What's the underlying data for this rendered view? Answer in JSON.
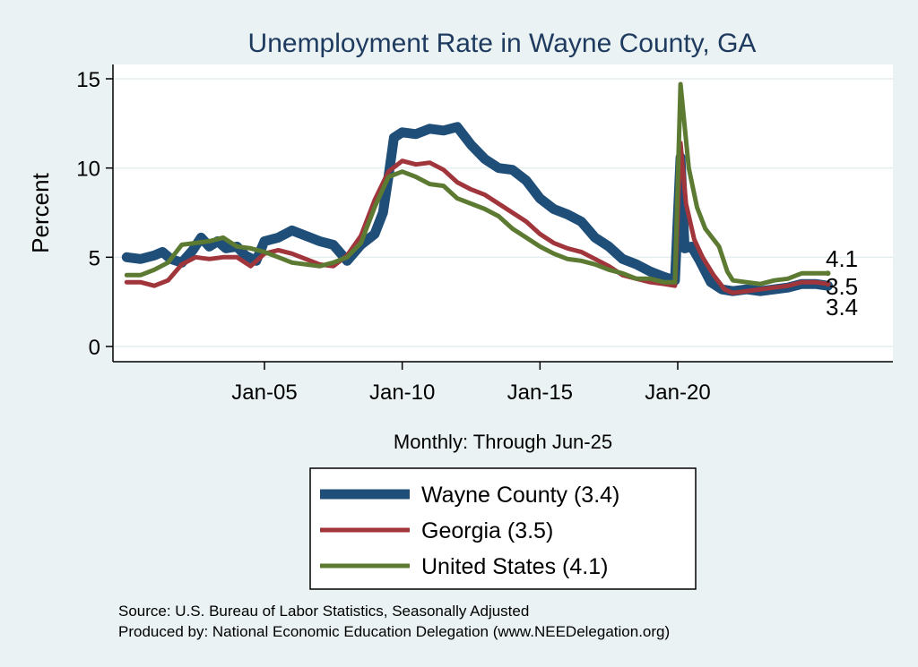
{
  "chart_data": {
    "type": "line",
    "title": "Unemployment Rate in Wayne  County, GA",
    "ylabel": "Percent",
    "xlabel": "",
    "x_note": "Monthly: Through Jun-25",
    "ylim": [
      0,
      15
    ],
    "yticks": [
      0,
      5,
      10,
      15
    ],
    "xlim": [
      2000.0,
      2027.5
    ],
    "xticks": [
      {
        "label": "Jan-05",
        "value": 2005
      },
      {
        "label": "Jan-10",
        "value": 2010
      },
      {
        "label": "Jan-15",
        "value": 2015
      },
      {
        "label": "Jan-20",
        "value": 2020
      }
    ],
    "grid": true,
    "series": [
      {
        "name": "Wayne  County",
        "legend_label": "Wayne  County (3.4)",
        "end_label": "3.4",
        "color": "#1f4e79",
        "points": [
          [
            2000.0,
            5.0
          ],
          [
            2000.5,
            4.9
          ],
          [
            2001.0,
            5.1
          ],
          [
            2001.3,
            5.3
          ],
          [
            2001.6,
            4.9
          ],
          [
            2002.0,
            4.7
          ],
          [
            2002.4,
            5.4
          ],
          [
            2002.7,
            6.1
          ],
          [
            2003.0,
            5.6
          ],
          [
            2003.3,
            5.9
          ],
          [
            2003.6,
            5.5
          ],
          [
            2004.0,
            5.6
          ],
          [
            2004.3,
            5.1
          ],
          [
            2004.7,
            4.8
          ],
          [
            2005.0,
            5.9
          ],
          [
            2005.5,
            6.1
          ],
          [
            2006.0,
            6.5
          ],
          [
            2006.5,
            6.2
          ],
          [
            2007.0,
            5.9
          ],
          [
            2007.5,
            5.7
          ],
          [
            2008.0,
            4.8
          ],
          [
            2008.5,
            5.7
          ],
          [
            2009.0,
            6.3
          ],
          [
            2009.3,
            7.5
          ],
          [
            2009.5,
            9.5
          ],
          [
            2009.7,
            11.7
          ],
          [
            2010.0,
            12.0
          ],
          [
            2010.5,
            11.9
          ],
          [
            2011.0,
            12.2
          ],
          [
            2011.5,
            12.1
          ],
          [
            2012.0,
            12.3
          ],
          [
            2012.5,
            11.3
          ],
          [
            2013.0,
            10.5
          ],
          [
            2013.5,
            10.0
          ],
          [
            2014.0,
            9.9
          ],
          [
            2014.5,
            9.3
          ],
          [
            2015.0,
            8.3
          ],
          [
            2015.5,
            7.7
          ],
          [
            2016.0,
            7.4
          ],
          [
            2016.5,
            7.0
          ],
          [
            2017.0,
            6.1
          ],
          [
            2017.5,
            5.6
          ],
          [
            2018.0,
            4.9
          ],
          [
            2018.5,
            4.6
          ],
          [
            2019.0,
            4.2
          ],
          [
            2019.5,
            3.9
          ],
          [
            2019.9,
            3.7
          ],
          [
            2020.1,
            10.6
          ],
          [
            2020.25,
            5.5
          ],
          [
            2020.5,
            5.6
          ],
          [
            2020.8,
            4.8
          ],
          [
            2021.2,
            3.6
          ],
          [
            2021.6,
            3.2
          ],
          [
            2022.0,
            3.1
          ],
          [
            2022.5,
            3.2
          ],
          [
            2023.0,
            3.1
          ],
          [
            2023.5,
            3.2
          ],
          [
            2024.0,
            3.3
          ],
          [
            2024.5,
            3.5
          ],
          [
            2025.0,
            3.5
          ],
          [
            2025.45,
            3.4
          ]
        ]
      },
      {
        "name": "Georgia",
        "legend_label": "Georgia (3.5)",
        "end_label": "3.5",
        "color": "#a0353b",
        "points": [
          [
            2000.0,
            3.6
          ],
          [
            2000.5,
            3.6
          ],
          [
            2001.0,
            3.4
          ],
          [
            2001.5,
            3.7
          ],
          [
            2002.0,
            4.6
          ],
          [
            2002.5,
            5.0
          ],
          [
            2003.0,
            4.9
          ],
          [
            2003.5,
            5.0
          ],
          [
            2004.0,
            5.0
          ],
          [
            2004.5,
            4.5
          ],
          [
            2005.0,
            5.2
          ],
          [
            2005.5,
            5.4
          ],
          [
            2006.0,
            5.2
          ],
          [
            2006.5,
            4.9
          ],
          [
            2007.0,
            4.6
          ],
          [
            2007.5,
            4.5
          ],
          [
            2008.0,
            5.1
          ],
          [
            2008.5,
            6.2
          ],
          [
            2009.0,
            8.2
          ],
          [
            2009.5,
            9.8
          ],
          [
            2010.0,
            10.4
          ],
          [
            2010.5,
            10.2
          ],
          [
            2011.0,
            10.3
          ],
          [
            2011.5,
            9.9
          ],
          [
            2012.0,
            9.2
          ],
          [
            2012.5,
            8.8
          ],
          [
            2013.0,
            8.5
          ],
          [
            2013.5,
            8.0
          ],
          [
            2014.0,
            7.5
          ],
          [
            2014.5,
            7.0
          ],
          [
            2015.0,
            6.3
          ],
          [
            2015.5,
            5.8
          ],
          [
            2016.0,
            5.5
          ],
          [
            2016.5,
            5.3
          ],
          [
            2017.0,
            4.9
          ],
          [
            2017.5,
            4.5
          ],
          [
            2018.0,
            4.0
          ],
          [
            2018.5,
            3.8
          ],
          [
            2019.0,
            3.6
          ],
          [
            2019.5,
            3.5
          ],
          [
            2019.9,
            3.4
          ],
          [
            2020.1,
            11.4
          ],
          [
            2020.3,
            8.0
          ],
          [
            2020.6,
            6.0
          ],
          [
            2020.9,
            5.0
          ],
          [
            2021.3,
            4.0
          ],
          [
            2021.7,
            3.2
          ],
          [
            2022.0,
            3.0
          ],
          [
            2022.5,
            3.1
          ],
          [
            2023.0,
            3.2
          ],
          [
            2023.5,
            3.3
          ],
          [
            2024.0,
            3.4
          ],
          [
            2024.5,
            3.6
          ],
          [
            2025.0,
            3.6
          ],
          [
            2025.45,
            3.5
          ]
        ]
      },
      {
        "name": "United States",
        "legend_label": "United States (4.1)",
        "end_label": "4.1",
        "color": "#5c7a31",
        "points": [
          [
            2000.0,
            4.0
          ],
          [
            2000.5,
            4.0
          ],
          [
            2001.0,
            4.3
          ],
          [
            2001.5,
            4.7
          ],
          [
            2002.0,
            5.7
          ],
          [
            2002.5,
            5.8
          ],
          [
            2003.0,
            5.9
          ],
          [
            2003.5,
            6.1
          ],
          [
            2004.0,
            5.6
          ],
          [
            2004.5,
            5.5
          ],
          [
            2005.0,
            5.3
          ],
          [
            2005.5,
            5.0
          ],
          [
            2006.0,
            4.7
          ],
          [
            2006.5,
            4.6
          ],
          [
            2007.0,
            4.5
          ],
          [
            2007.5,
            4.7
          ],
          [
            2008.0,
            5.0
          ],
          [
            2008.5,
            5.8
          ],
          [
            2009.0,
            7.8
          ],
          [
            2009.5,
            9.5
          ],
          [
            2010.0,
            9.8
          ],
          [
            2010.5,
            9.5
          ],
          [
            2011.0,
            9.1
          ],
          [
            2011.5,
            9.0
          ],
          [
            2012.0,
            8.3
          ],
          [
            2012.5,
            8.0
          ],
          [
            2013.0,
            7.7
          ],
          [
            2013.5,
            7.3
          ],
          [
            2014.0,
            6.6
          ],
          [
            2014.5,
            6.1
          ],
          [
            2015.0,
            5.6
          ],
          [
            2015.5,
            5.2
          ],
          [
            2016.0,
            4.9
          ],
          [
            2016.5,
            4.8
          ],
          [
            2017.0,
            4.6
          ],
          [
            2017.5,
            4.3
          ],
          [
            2018.0,
            4.1
          ],
          [
            2018.5,
            3.8
          ],
          [
            2019.0,
            3.8
          ],
          [
            2019.5,
            3.6
          ],
          [
            2019.9,
            3.6
          ],
          [
            2020.1,
            14.7
          ],
          [
            2020.4,
            10.0
          ],
          [
            2020.7,
            7.8
          ],
          [
            2021.0,
            6.6
          ],
          [
            2021.5,
            5.6
          ],
          [
            2021.8,
            4.2
          ],
          [
            2022.0,
            3.7
          ],
          [
            2022.5,
            3.6
          ],
          [
            2023.0,
            3.5
          ],
          [
            2023.5,
            3.7
          ],
          [
            2024.0,
            3.8
          ],
          [
            2024.5,
            4.1
          ],
          [
            2025.0,
            4.1
          ],
          [
            2025.45,
            4.1
          ]
        ]
      }
    ]
  },
  "footer": {
    "source": "Source: U.S. Bureau of Labor Statistics, Seasonally Adjusted",
    "producer": "Produced by: National Economic Education Delegation (www.NEEDelegation.org)"
  }
}
